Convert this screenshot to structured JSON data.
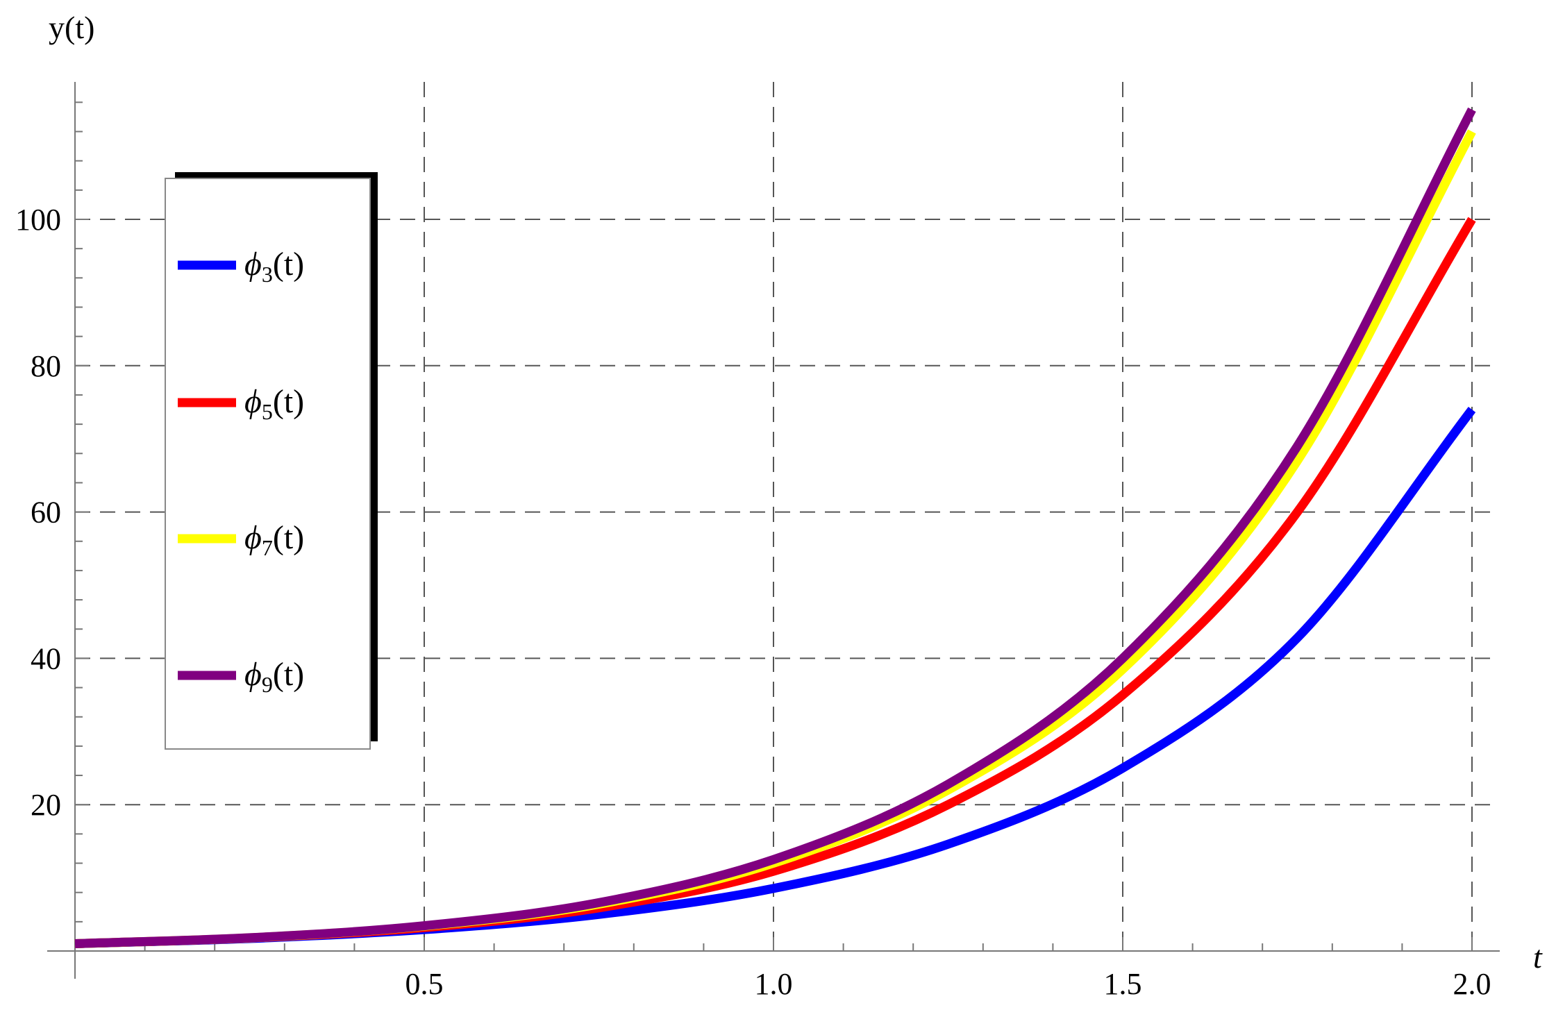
{
  "chart_data": {
    "type": "line",
    "title": "",
    "xlabel": "t",
    "ylabel": "y(t)",
    "xlim": [
      0,
      2.05
    ],
    "ylim": [
      0,
      118
    ],
    "grid": true,
    "legend_position": "top-left",
    "x_ticks": [
      {
        "value": 0.5,
        "label": "0.5"
      },
      {
        "value": 1.0,
        "label": "1.0"
      },
      {
        "value": 1.5,
        "label": "1.5"
      },
      {
        "value": 2.0,
        "label": "2.0"
      }
    ],
    "y_ticks": [
      {
        "value": 20,
        "label": "20"
      },
      {
        "value": 40,
        "label": "40"
      },
      {
        "value": 60,
        "label": "60"
      },
      {
        "value": 80,
        "label": "80"
      },
      {
        "value": 100,
        "label": "100"
      }
    ],
    "x": [
      0,
      0.25,
      0.5,
      0.75,
      1.0,
      1.25,
      1.5,
      1.75,
      2.0
    ],
    "series": [
      {
        "name": "ϕ",
        "subscript": "3",
        "suffix": "(t)",
        "color": "#0000ff",
        "values": [
          1.0,
          1.71,
          2.92,
          5.0,
          8.55,
          14.6,
          25.0,
          42.8,
          74.0
        ]
      },
      {
        "name": "ϕ",
        "subscript": "5",
        "suffix": "(t)",
        "color": "#ff0000",
        "values": [
          1.0,
          1.78,
          3.2,
          5.9,
          10.9,
          20.0,
          35.0,
          60.0,
          100.0
        ]
      },
      {
        "name": "ϕ",
        "subscript": "7",
        "suffix": "(t)",
        "color": "#ffff00",
        "values": [
          1.0,
          1.8,
          3.4,
          6.4,
          12.0,
          22.0,
          38.5,
          67.0,
          112.0
        ]
      },
      {
        "name": "ϕ",
        "subscript": "9",
        "suffix": "(t)",
        "color": "#800080",
        "values": [
          1.0,
          1.81,
          3.45,
          6.6,
          12.5,
          22.8,
          40.0,
          69.0,
          115.0
        ]
      }
    ]
  }
}
